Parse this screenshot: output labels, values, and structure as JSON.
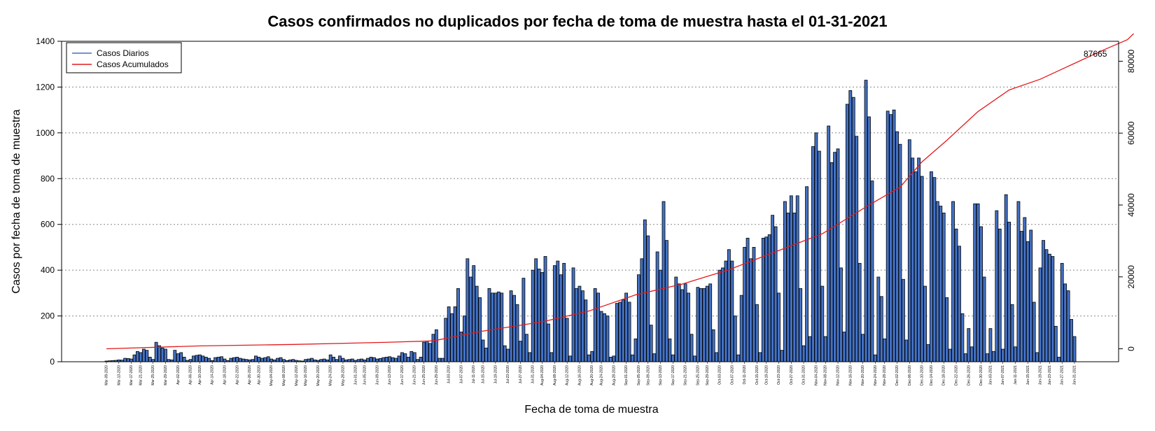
{
  "chart_data": {
    "type": "bar",
    "title": "Casos confirmados no duplicados por fecha de toma de muestra hasta el 01-31-2021",
    "xlabel": "Fecha de toma de muestra",
    "ylabel": "Casos por fecha de toma de muestra",
    "ylim": [
      0,
      1400
    ],
    "y_ticks": [
      0,
      200,
      400,
      600,
      800,
      1000,
      1200,
      1400
    ],
    "y2lim": [
      0,
      90000
    ],
    "y2_ticks": [
      0,
      20000,
      40000,
      60000,
      80000
    ],
    "grid": "horizontal dotted",
    "legend_position": "top-left",
    "x_start": "2020-03-09",
    "x_end": "2021-01-31",
    "x_tick_labels": [
      "Mar-09-2020",
      "Mar-13-2020",
      "Mar-17-2020",
      "Mar-21-2020",
      "Mar-25-2020",
      "Mar-29-2020",
      "Apr-02-2020",
      "Apr-06-2020",
      "Apr-10-2020",
      "Apr-14-2020",
      "Apr-18-2020",
      "Apr-22-2020",
      "Apr-26-2020",
      "Apr-30-2020",
      "May-04-2020",
      "May-08-2020",
      "May-12-2020",
      "May-16-2020",
      "May-20-2020",
      "May-24-2020",
      "May-28-2020",
      "Jun-01-2020",
      "Jun-05-2020",
      "Jun-09-2020",
      "Jun-13-2020",
      "Jun-17-2020",
      "Jun-21-2020",
      "Jun-25-2020",
      "Jun-29-2020",
      "Jul-03-2020",
      "Jul-07-2020",
      "Jul-11-2020",
      "Jul-15-2020",
      "Jul-19-2020",
      "Jul-23-2020",
      "Jul-27-2020",
      "Jul-31-2020",
      "Aug-04-2020",
      "Aug-08-2020",
      "Aug-12-2020",
      "Aug-16-2020",
      "Aug-20-2020",
      "Aug-24-2020",
      "Aug-28-2020",
      "Sep-01-2020",
      "Sep-05-2020",
      "Sep-09-2020",
      "Sep-13-2020",
      "Sep-17-2020",
      "Sep-21-2020",
      "Sep-25-2020",
      "Sep-29-2020",
      "Oct-03-2020",
      "Oct-07-2020",
      "Oct-11-2020",
      "Oct-15-2020",
      "Oct-19-2020",
      "Oct-23-2020",
      "Oct-27-2020",
      "Oct-31-2020",
      "Nov-04-2020",
      "Nov-08-2020",
      "Nov-12-2020",
      "Nov-16-2020",
      "Nov-20-2020",
      "Nov-24-2020",
      "Nov-28-2020",
      "Dec-02-2020",
      "Dec-06-2020",
      "Dec-10-2020",
      "Dec-14-2020",
      "Dec-18-2020",
      "Dec-22-2020",
      "Dec-26-2020",
      "Dec-30-2020",
      "Jan-03-2021",
      "Jan-07-2021",
      "Jan-11-2021",
      "Jan-15-2021",
      "Jan-19-2021",
      "Jan-23-2021",
      "Jan-27-2021",
      "Jan-31-2021"
    ],
    "series": [
      {
        "name": "Casos Diarios",
        "type": "bar",
        "axis": "left",
        "color": "#4472c4",
        "values": [
          3,
          4,
          5,
          6,
          8,
          7,
          15,
          14,
          12,
          30,
          45,
          40,
          55,
          50,
          20,
          10,
          85,
          70,
          60,
          55,
          10,
          8,
          50,
          35,
          40,
          20,
          6,
          10,
          25,
          28,
          30,
          25,
          20,
          15,
          5,
          18,
          20,
          22,
          12,
          5,
          15,
          18,
          20,
          15,
          12,
          10,
          8,
          10,
          25,
          20,
          15,
          18,
          22,
          12,
          8,
          15,
          18,
          10,
          5,
          8,
          10,
          6,
          4,
          3,
          10,
          12,
          15,
          8,
          6,
          10,
          12,
          8,
          30,
          20,
          10,
          25,
          15,
          8,
          10,
          12,
          6,
          10,
          12,
          8,
          15,
          20,
          18,
          12,
          14,
          18,
          20,
          22,
          18,
          15,
          25,
          40,
          35,
          20,
          45,
          40,
          10,
          20,
          85,
          90,
          80,
          120,
          140,
          15,
          15,
          190,
          240,
          210,
          240,
          320,
          130,
          200,
          450,
          370,
          420,
          330,
          280,
          95,
          60,
          320,
          300,
          300,
          305,
          300,
          70,
          55,
          310,
          290,
          250,
          90,
          365,
          120,
          40,
          400,
          450,
          405,
          390,
          460,
          165,
          40,
          420,
          440,
          380,
          430,
          190,
          25,
          410,
          320,
          330,
          310,
          270,
          30,
          45,
          320,
          300,
          220,
          210,
          200,
          20,
          25,
          255,
          260,
          270,
          300,
          260,
          30,
          100,
          380,
          450,
          620,
          550,
          160,
          35,
          480,
          400,
          700,
          530,
          100,
          30,
          370,
          340,
          315,
          340,
          300,
          120,
          25,
          325,
          320,
          320,
          330,
          340,
          140,
          40,
          400,
          410,
          440,
          490,
          440,
          200,
          30,
          290,
          500,
          540,
          450,
          500,
          250,
          40,
          540,
          545,
          555,
          640,
          590,
          300,
          50,
          700,
          650,
          725,
          650,
          725,
          320,
          70,
          765,
          110,
          940,
          1000,
          920,
          330,
          110,
          1030,
          870,
          915,
          930,
          410,
          130,
          1125,
          1185,
          1155,
          985,
          430,
          120,
          1230,
          1070,
          790,
          30,
          370,
          285,
          100,
          1095,
          1080,
          1100,
          1005,
          950,
          360,
          95,
          970,
          890,
          830,
          890,
          810,
          330,
          75,
          830,
          805,
          700,
          680,
          650,
          280,
          55,
          700,
          580,
          505,
          210,
          35,
          145,
          65,
          690,
          690,
          590,
          370,
          35,
          145,
          45,
          660,
          580,
          55,
          730,
          610,
          250,
          65,
          700,
          570,
          630,
          525,
          575,
          260,
          40,
          410,
          530,
          490,
          470,
          460,
          155,
          20,
          430,
          340,
          310,
          185,
          110
        ]
      },
      {
        "name": "Casos Acumulados",
        "type": "line",
        "axis": "right",
        "color": "#e31a1c",
        "end_label": "87665",
        "points": [
          {
            "day": 0,
            "value": 0
          },
          {
            "day": 30,
            "value": 800
          },
          {
            "day": 60,
            "value": 1200
          },
          {
            "day": 90,
            "value": 1800
          },
          {
            "day": 105,
            "value": 2200
          },
          {
            "day": 120,
            "value": 4800
          },
          {
            "day": 140,
            "value": 7500
          },
          {
            "day": 155,
            "value": 10500
          },
          {
            "day": 170,
            "value": 15000
          },
          {
            "day": 185,
            "value": 18000
          },
          {
            "day": 200,
            "value": 22000
          },
          {
            "day": 215,
            "value": 27000
          },
          {
            "day": 230,
            "value": 32000
          },
          {
            "day": 245,
            "value": 40000
          },
          {
            "day": 255,
            "value": 45000
          },
          {
            "day": 262,
            "value": 52000
          },
          {
            "day": 270,
            "value": 58000
          },
          {
            "day": 280,
            "value": 66000
          },
          {
            "day": 290,
            "value": 72000
          },
          {
            "day": 300,
            "value": 75000
          },
          {
            "day": 310,
            "value": 79000
          },
          {
            "day": 320,
            "value": 83000
          },
          {
            "day": 328,
            "value": 86000
          },
          {
            "day": 330,
            "value": 87665
          }
        ]
      }
    ]
  }
}
